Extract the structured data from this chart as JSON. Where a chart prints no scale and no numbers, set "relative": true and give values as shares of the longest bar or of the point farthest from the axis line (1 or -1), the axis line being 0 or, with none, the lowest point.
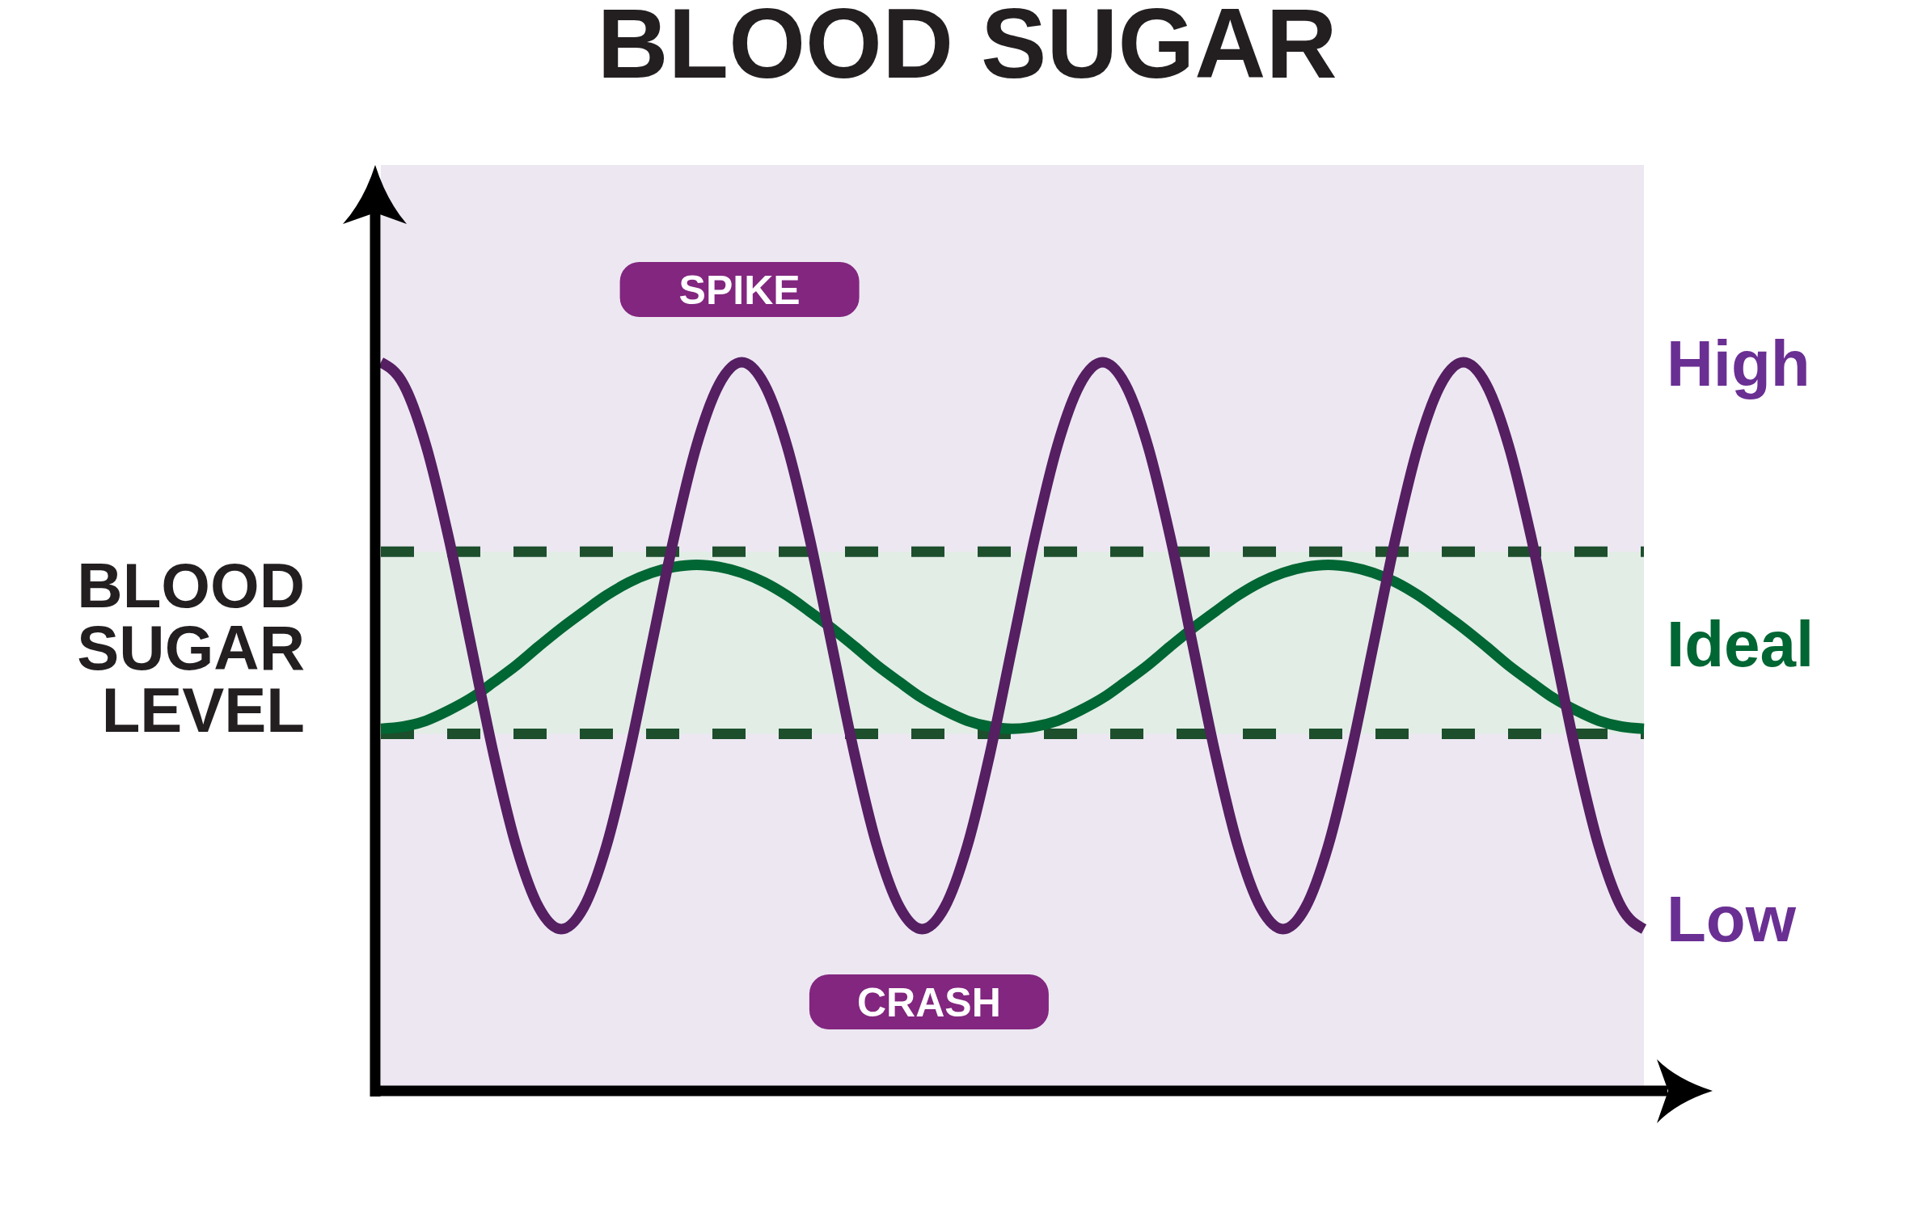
{
  "chart_data": {
    "type": "line",
    "title": "BLOOD SUGAR",
    "ylabel": "BLOOD SUGAR LEVEL",
    "relative": true,
    "categories": [
      null,
      null,
      null,
      null,
      null,
      null,
      null,
      null,
      null,
      null,
      null,
      null,
      null,
      null,
      null,
      null,
      null,
      null,
      null,
      null,
      null,
      null,
      null,
      null,
      null,
      null,
      null,
      null,
      null,
      null,
      null,
      null,
      null,
      null,
      null,
      null,
      null,
      null,
      null,
      null,
      null,
      null,
      null,
      null,
      null,
      null,
      null,
      null,
      null,
      null,
      null,
      null,
      null,
      null,
      null,
      null,
      null
    ],
    "series": [
      {
        "color": "#006633",
        "values": [
          0.497,
          0.5,
          0.508,
          0.522,
          0.539,
          0.561,
          0.584,
          0.61,
          0.635,
          0.658,
          0.68,
          0.698,
          0.711,
          0.719,
          0.722,
          0.719,
          0.711,
          0.698,
          0.68,
          0.658,
          0.635,
          0.61,
          0.584,
          0.561,
          0.539,
          0.522,
          0.508,
          0.5,
          0.497,
          0.5,
          0.508,
          0.522,
          0.539,
          0.561,
          0.584,
          0.61,
          0.635,
          0.658,
          0.68,
          0.698,
          0.711,
          0.719,
          0.722,
          0.719,
          0.711,
          0.698,
          0.68,
          0.658,
          0.635,
          0.61,
          0.584,
          0.561,
          0.539,
          0.522,
          0.508,
          0.5,
          0.497
        ]
      },
      {
        "color": "#551f62",
        "values": [
          1.0,
          0.97,
          0.886,
          0.76,
          0.611,
          0.462,
          0.336,
          0.252,
          0.222,
          0.252,
          0.336,
          0.462,
          0.611,
          0.76,
          0.886,
          0.97,
          1.0,
          0.97,
          0.886,
          0.76,
          0.611,
          0.462,
          0.336,
          0.252,
          0.222,
          0.252,
          0.336,
          0.462,
          0.611,
          0.76,
          0.886,
          0.97,
          1.0,
          0.97,
          0.886,
          0.76,
          0.611,
          0.462,
          0.336,
          0.252,
          0.222,
          0.252,
          0.336,
          0.462,
          0.611,
          0.76,
          0.886,
          0.97,
          1.0,
          0.97,
          0.886,
          0.76,
          0.611,
          0.462,
          0.336,
          0.252,
          0.222
        ]
      }
    ],
    "bands": [
      {
        "axis": "y",
        "from": 0.49,
        "to": 0.74,
        "label": "Ideal",
        "color": "#e2ede6"
      }
    ],
    "ref_lines": [
      {
        "axis": "y",
        "value": 0.74,
        "color": "#1d4f2d",
        "line_style": "dashed"
      },
      {
        "axis": "y",
        "value": 0.49,
        "color": "#1d4f2d",
        "line_style": "dashed"
      }
    ],
    "annotations": [
      "SPIKE",
      "CRASH",
      "High",
      "Low"
    ]
  }
}
